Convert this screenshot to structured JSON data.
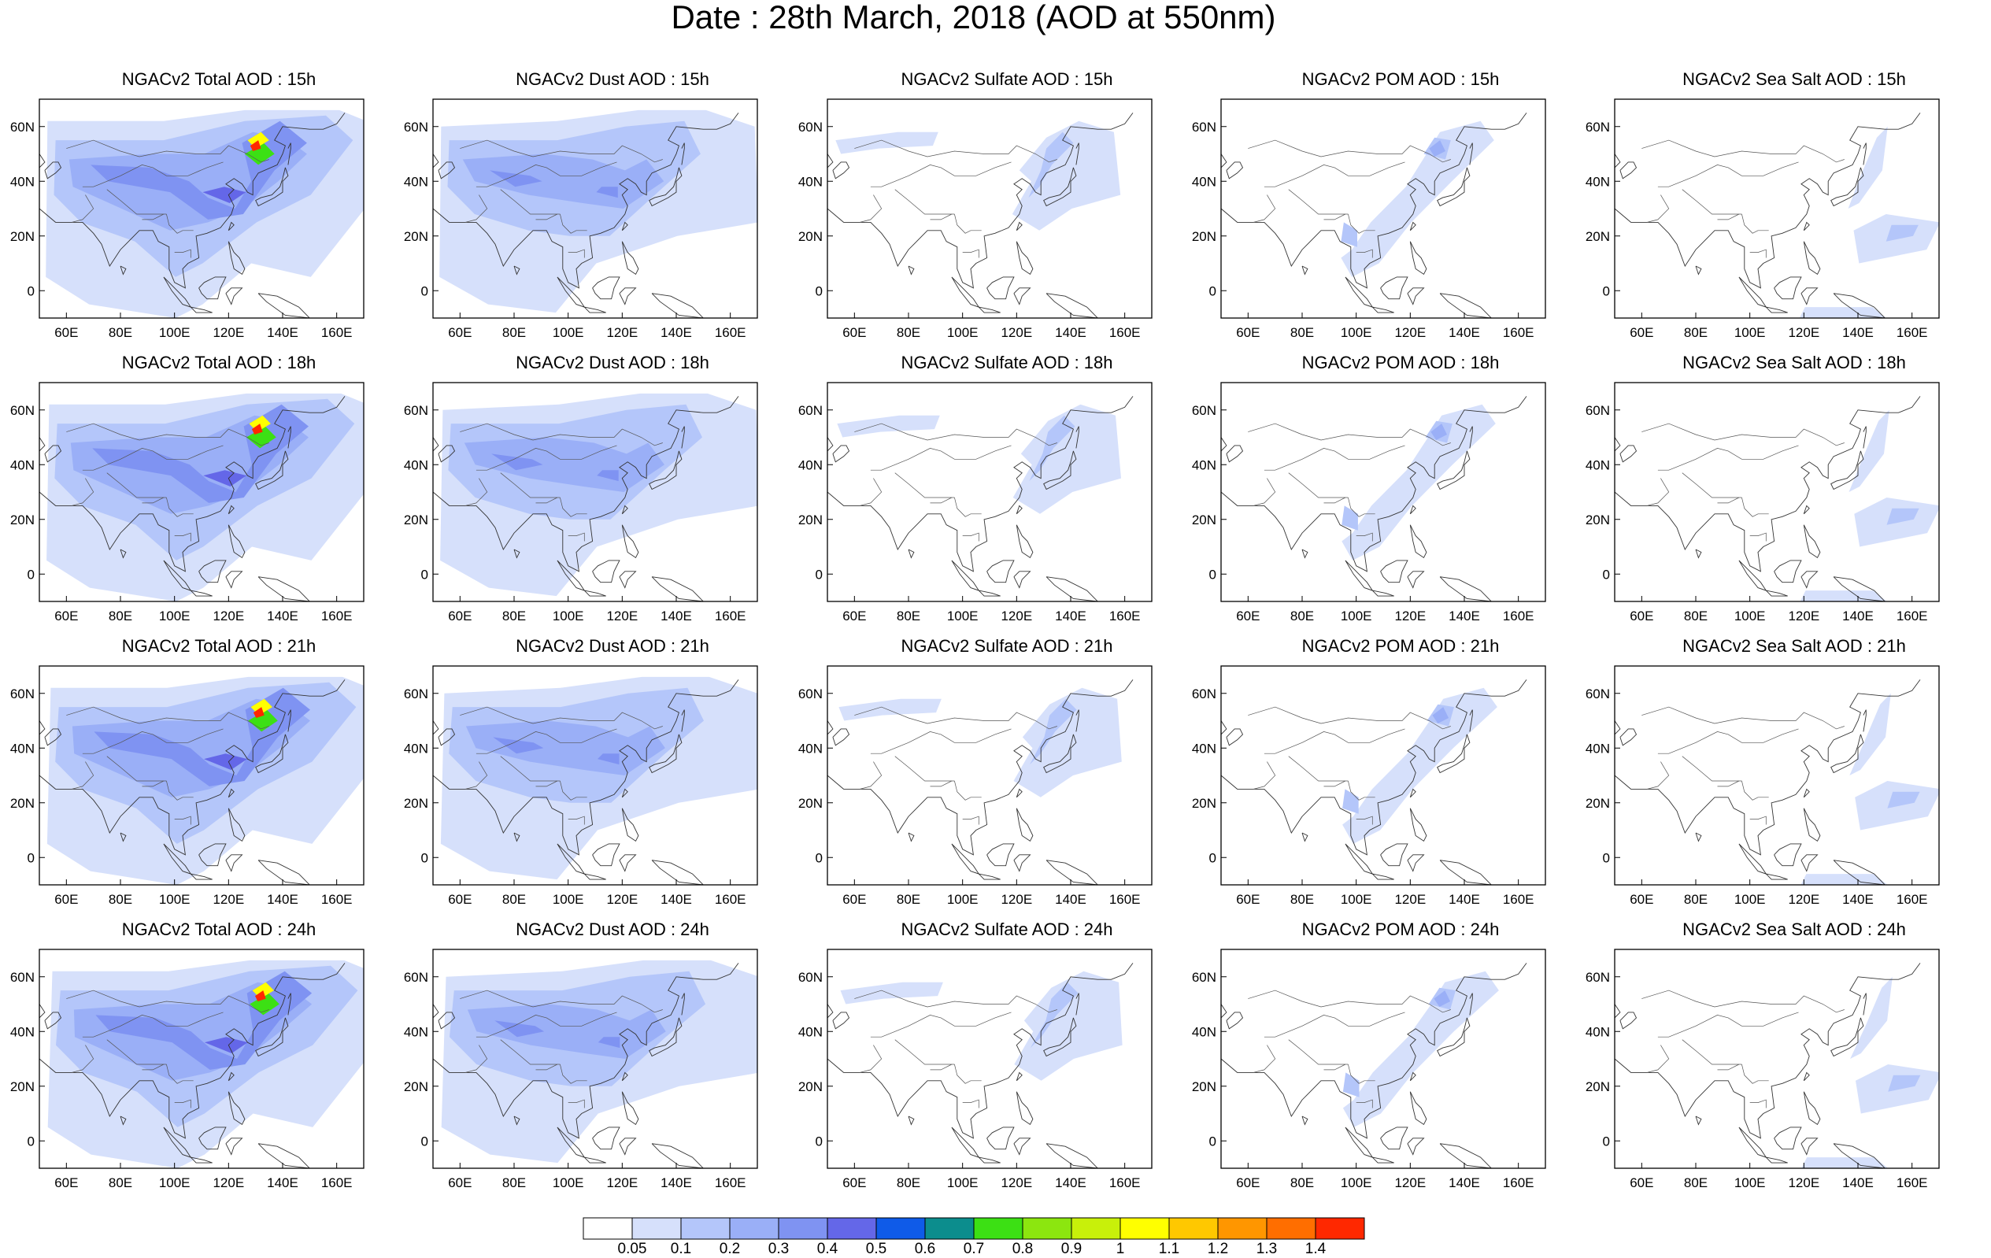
{
  "title": "Date : 28th March, 2018 (AOD at 550nm)",
  "panels": [
    [
      "NGACv2 Total AOD : 15h",
      "NGACv2 Dust AOD : 15h",
      "NGACv2 Sulfate AOD : 15h",
      "NGACv2 POM AOD : 15h",
      "NGACv2 Sea Salt AOD : 15h"
    ],
    [
      "NGACv2 Total AOD : 18h",
      "NGACv2 Dust AOD : 18h",
      "NGACv2 Sulfate AOD : 18h",
      "NGACv2 POM AOD : 18h",
      "NGACv2 Sea Salt AOD : 18h"
    ],
    [
      "NGACv2 Total AOD : 21h",
      "NGACv2 Dust AOD : 21h",
      "NGACv2 Sulfate AOD : 21h",
      "NGACv2 POM AOD : 21h",
      "NGACv2 Sea Salt AOD : 21h"
    ],
    [
      "NGACv2 Total AOD : 24h",
      "NGACv2 Dust AOD : 24h",
      "NGACv2 Sulfate AOD : 24h",
      "NGACv2 POM AOD : 24h",
      "NGACv2 Sea Salt  AOD : 24h"
    ]
  ],
  "axes": {
    "lat_labels": [
      "60N",
      "40N",
      "20N",
      "0"
    ],
    "lon_labels": [
      "60E",
      "80E",
      "100E",
      "120E",
      "140E",
      "160E"
    ],
    "lat_range": [
      -10,
      70
    ],
    "lon_range": [
      50,
      170
    ]
  },
  "colorbar": {
    "labels": [
      "0.05",
      "0.1",
      "0.2",
      "0.3",
      "0.4",
      "0.5",
      "0.6",
      "0.7",
      "0.8",
      "0.9",
      "1",
      "1.1",
      "1.2",
      "1.3",
      "1.4"
    ],
    "colors": [
      "#ffffff",
      "#d6e0fb",
      "#b4c6fa",
      "#9aaff7",
      "#7f93f2",
      "#6467e8",
      "#0f5be8",
      "#0c8d8d",
      "#3ce014",
      "#8ce60f",
      "#c8f00a",
      "#ffff00",
      "#ffc800",
      "#ff9600",
      "#ff6e00",
      "#ff2800"
    ]
  }
}
